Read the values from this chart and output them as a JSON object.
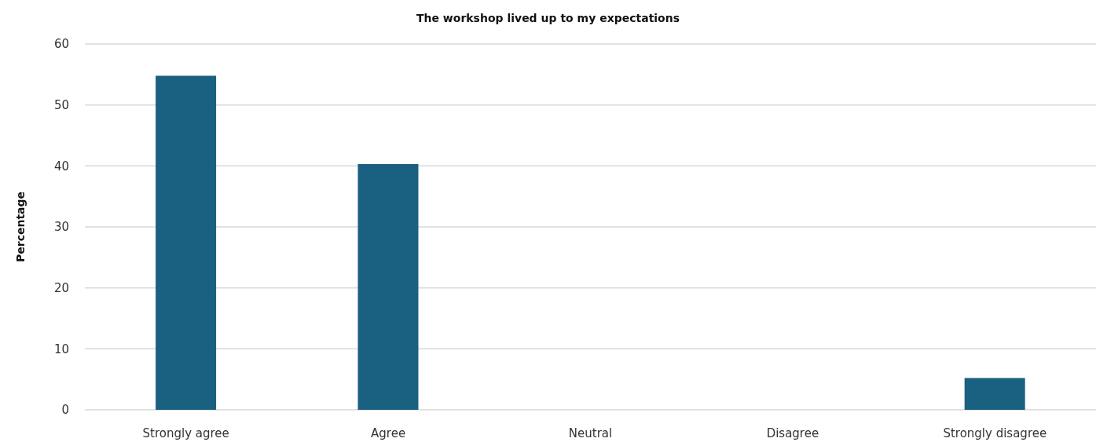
{
  "chart_data": {
    "type": "bar",
    "title": "The workshop lived up to my expectations",
    "ylabel": "Percentage",
    "categories": [
      "Strongly agree",
      "Agree",
      "Neutral",
      "Disagree",
      "Strongly disagree"
    ],
    "values": [
      54.8,
      40.3,
      0,
      0,
      5.2
    ],
    "color": "#1a6080",
    "ylim": [
      0,
      60
    ],
    "yticks": [
      0,
      10,
      20,
      30,
      40,
      50,
      60
    ],
    "grid": "y"
  }
}
